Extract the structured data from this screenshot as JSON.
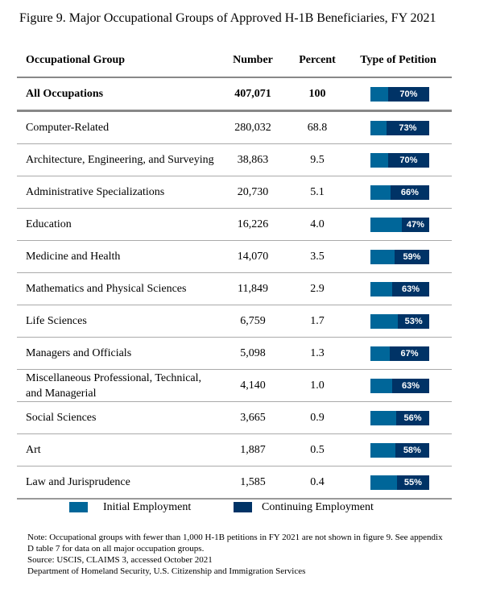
{
  "title": "Figure 9. Major Occupational Groups of Approved H-1B Beneficiaries, FY 2021",
  "colors": {
    "initial": "#006699",
    "continuing": "#003366"
  },
  "chart_data": {
    "type": "table",
    "title": "Figure 9. Major Occupational Groups of Approved H-1B Beneficiaries, FY 2021",
    "columns": [
      "Occupational Group",
      "Number",
      "Percent",
      "Type of Petition"
    ],
    "total": {
      "group": "All Occupations",
      "number": "407,071",
      "percent": "100",
      "continuing_pct": 70
    },
    "rows": [
      {
        "group": "Computer-Related",
        "number": "280,032",
        "percent": "68.8",
        "continuing_pct": 73
      },
      {
        "group": "Architecture, Engineering, and Surveying",
        "number": "38,863",
        "percent": "9.5",
        "continuing_pct": 70
      },
      {
        "group": "Administrative Specializations",
        "number": "20,730",
        "percent": "5.1",
        "continuing_pct": 66
      },
      {
        "group": "Education",
        "number": "16,226",
        "percent": "4.0",
        "continuing_pct": 47
      },
      {
        "group": "Medicine and Health",
        "number": "14,070",
        "percent": "3.5",
        "continuing_pct": 59
      },
      {
        "group": "Mathematics and Physical Sciences",
        "number": "11,849",
        "percent": "2.9",
        "continuing_pct": 63
      },
      {
        "group": "Life Sciences",
        "number": "6,759",
        "percent": "1.7",
        "continuing_pct": 53
      },
      {
        "group": "Managers and Officials",
        "number": "5,098",
        "percent": "1.3",
        "continuing_pct": 67
      },
      {
        "group": "Miscellaneous Professional, Technical, and Managerial",
        "number": "4,140",
        "percent": "1.0",
        "continuing_pct": 63
      },
      {
        "group": "Social Sciences",
        "number": "3,665",
        "percent": "0.9",
        "continuing_pct": 56
      },
      {
        "group": "Art",
        "number": "1,887",
        "percent": "0.5",
        "continuing_pct": 58
      },
      {
        "group": "Law and Jurisprudence",
        "number": "1,585",
        "percent": "0.4",
        "continuing_pct": 55
      }
    ],
    "legend": [
      "Initial Employment",
      "Continuing Employment"
    ]
  },
  "notes": [
    "Note: Occupational groups with fewer than 1,000 H-1B petitions in FY 2021 are not shown in figure 9.  See appendix",
    "D table 7 for data on all major occupation groups.",
    "Source: USCIS, CLAIMS 3, accessed October 2021",
    "Department of Homeland Security, U.S. Citizenship and Immigration Services"
  ]
}
